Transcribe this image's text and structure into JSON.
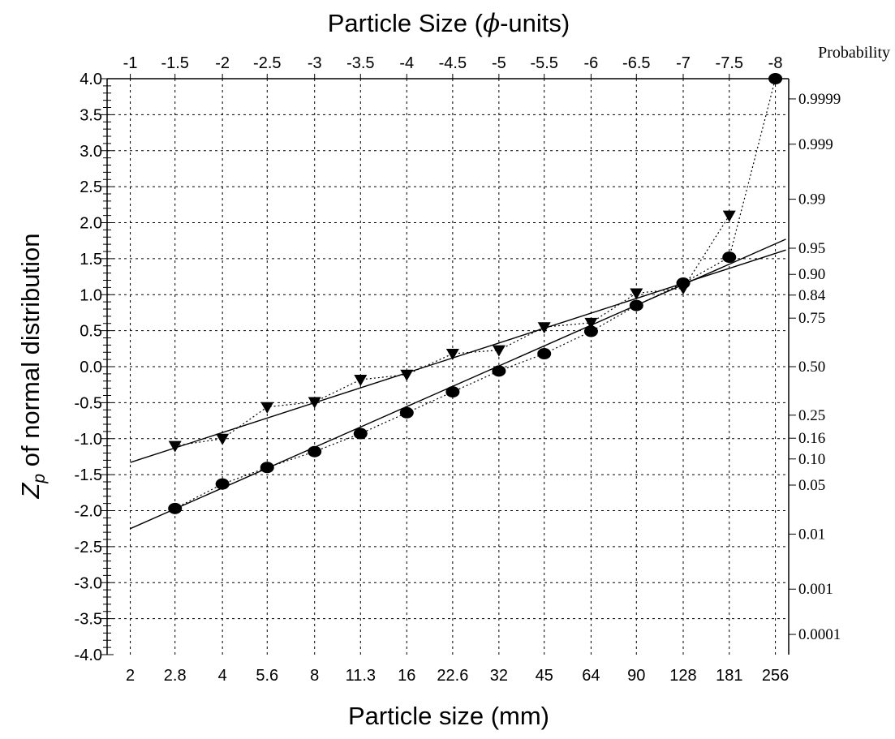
{
  "chart_data": {
    "type": "scatter",
    "title": "Particle Size (ϕ-units)",
    "xlabel": "Particle size (mm)",
    "ylabel": "Z",
    "ylabel_sub": "p",
    "ylabel_rest": " of normal distribution",
    "top_axis_title_pre": "Particle Size (",
    "top_axis_title_phi": "ϕ",
    "top_axis_title_post": "-units)",
    "right_axis_title": "Probability",
    "x_scale": "log2",
    "x_unit": "mm",
    "xlim": [
      1.68,
      283
    ],
    "ylim": [
      -4.0,
      4.0
    ],
    "grid": true,
    "x_ticks": [
      {
        "value": 2,
        "label": "2"
      },
      {
        "value": 2.8,
        "label": "2.8"
      },
      {
        "value": 4,
        "label": "4"
      },
      {
        "value": 5.6,
        "label": "5.6"
      },
      {
        "value": 8,
        "label": "8"
      },
      {
        "value": 11.3,
        "label": "11.3"
      },
      {
        "value": 16,
        "label": "16"
      },
      {
        "value": 22.6,
        "label": "22.6"
      },
      {
        "value": 32,
        "label": "32"
      },
      {
        "value": 45,
        "label": "45"
      },
      {
        "value": 64,
        "label": "64"
      },
      {
        "value": 90,
        "label": "90"
      },
      {
        "value": 128,
        "label": "128"
      },
      {
        "value": 181,
        "label": "181"
      },
      {
        "value": 256,
        "label": "256"
      }
    ],
    "top_ticks": [
      "-1",
      "-1.5",
      "-2",
      "-2.5",
      "-3",
      "-3.5",
      "-4",
      "-4.5",
      "-5",
      "-5.5",
      "-6",
      "-6.5",
      "-7",
      "-7.5",
      "-8"
    ],
    "y_ticks": [
      "4.0",
      "3.5",
      "3.0",
      "2.5",
      "2.0",
      "1.5",
      "1.0",
      "0.5",
      "0.0",
      "-0.5",
      "-1.0",
      "-1.5",
      "-2.0",
      "-2.5",
      "-3.0",
      "-3.5",
      "-4.0"
    ],
    "y_tick_values": [
      4.0,
      3.5,
      3.0,
      2.5,
      2.0,
      1.5,
      1.0,
      0.5,
      0.0,
      -0.5,
      -1.0,
      -1.5,
      -2.0,
      -2.5,
      -3.0,
      -3.5,
      -4.0
    ],
    "probability_ticks": [
      {
        "label": "0.9999",
        "z": 3.719
      },
      {
        "label": "0.999",
        "z": 3.09
      },
      {
        "label": "0.99",
        "z": 2.326
      },
      {
        "label": "0.95",
        "z": 1.645
      },
      {
        "label": "0.90",
        "z": 1.282
      },
      {
        "label": "0.84",
        "z": 0.994
      },
      {
        "label": "0.75",
        "z": 0.674
      },
      {
        "label": "0.50",
        "z": 0.0
      },
      {
        "label": "0.25",
        "z": -0.674
      },
      {
        "label": "0.16",
        "z": -0.994
      },
      {
        "label": "0.10",
        "z": -1.282
      },
      {
        "label": "0.05",
        "z": -1.645
      },
      {
        "label": "0.01",
        "z": -2.326
      },
      {
        "label": "0.001",
        "z": -3.09
      },
      {
        "label": "0.0001",
        "z": -3.719
      }
    ],
    "series": [
      {
        "marker": "circle",
        "x": [
          2.8,
          4,
          5.6,
          8,
          11.3,
          16,
          22.6,
          32,
          45,
          64,
          90,
          128,
          181,
          256
        ],
        "y": [
          -1.97,
          -1.63,
          -1.4,
          -1.18,
          -0.93,
          -0.64,
          -0.35,
          -0.06,
          0.18,
          0.49,
          0.85,
          1.16,
          1.52,
          4.0
        ],
        "fit": {
          "x": [
            2,
            277
          ],
          "y": [
            -2.25,
            1.77
          ]
        }
      },
      {
        "marker": "triangle-down",
        "x": [
          2.8,
          4,
          5.6,
          8,
          11.3,
          16,
          22.6,
          32,
          45,
          64,
          90,
          128,
          181
        ],
        "y": [
          -1.1,
          -1.0,
          -0.56,
          -0.49,
          -0.18,
          -0.11,
          0.18,
          0.23,
          0.55,
          0.61,
          1.02,
          1.09,
          2.1
        ],
        "fit": {
          "x": [
            2,
            277
          ],
          "y": [
            -1.33,
            1.62
          ]
        }
      }
    ],
    "colors": {
      "marker": "#000000",
      "line": "#000000",
      "grid": "#000000",
      "background": "#ffffff"
    }
  }
}
